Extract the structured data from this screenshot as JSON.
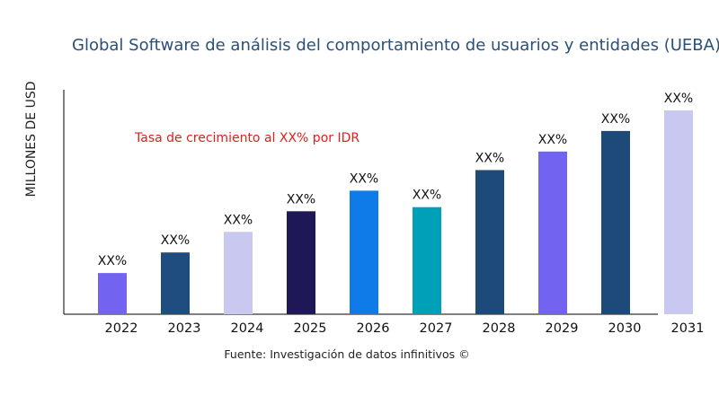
{
  "chart_data": {
    "type": "bar",
    "title": "Global Software de análisis del comportamiento de usuarios y entidades (UEBA)",
    "xlabel": "",
    "ylabel": "MILLONES DE USD",
    "categories": [
      "2022",
      "2023",
      "2024",
      "2025",
      "2026",
      "2027",
      "2028",
      "2029",
      "2030",
      "2031"
    ],
    "values": [
      2.0,
      3.0,
      4.0,
      5.0,
      6.0,
      5.2,
      7.0,
      7.9,
      8.9,
      9.9
    ],
    "data_labels": [
      "XX%",
      "XX%",
      "XX%",
      "XX%",
      "XX%",
      "XX%",
      "XX%",
      "XX%",
      "XX%",
      "XX%"
    ],
    "colors": [
      "#7263f0",
      "#1f4e7e",
      "#c8c8f0",
      "#1e1857",
      "#0f7be8",
      "#00a0b8",
      "#1e4a7a",
      "#7263f0",
      "#1e4a7a",
      "#c8c8f0"
    ],
    "ylim": [
      0,
      10.9
    ],
    "grid": false,
    "annotation": "Tasa de crecimiento al XX% por IDR",
    "source": "Fuente: Investigación de datos infinitivos ©"
  }
}
